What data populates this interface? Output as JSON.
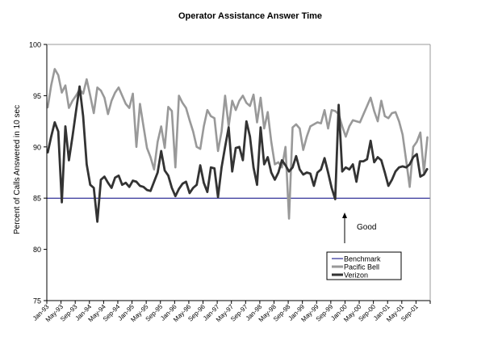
{
  "chart_data": {
    "type": "line",
    "title": "Operator Assistance Answer Time",
    "xlabel": "",
    "ylabel": "Percent of Calls Answered in 10 sec",
    "ylim": [
      75,
      100
    ],
    "yticks": [
      75,
      80,
      85,
      90,
      95,
      100
    ],
    "x_start": "Jan-93",
    "x_months": 108,
    "x_tick_labels": [
      "Jan-93",
      "May-93",
      "Sep-93",
      "Jan-94",
      "May-94",
      "Sep-94",
      "Jan-95",
      "May-95",
      "Sep-95",
      "Jan-96",
      "May-96",
      "Sep-96",
      "Jan-97",
      "May-97",
      "Sep-97",
      "Jan-98",
      "May-98",
      "Sep-98",
      "Jan-99",
      "May-99",
      "Sep-99",
      "Jan-00",
      "May-00",
      "Sep-00",
      "Jan-01",
      "May-01",
      "Sep-01"
    ],
    "grid": false,
    "legend_position": "bottom-right",
    "annotation": {
      "text": "Good",
      "arrow": "up"
    },
    "series": [
      {
        "name": "Benchmark",
        "color": "#000080",
        "constant": 85
      },
      {
        "name": "Pacific Bell",
        "color": "#999999",
        "values": [
          93.8,
          96,
          97.6,
          97,
          95.3,
          96,
          93.8,
          94.5,
          95,
          95.6,
          95.2,
          96.6,
          95,
          93.3,
          95.8,
          95.5,
          94.8,
          93.2,
          94.5,
          95.3,
          95.8,
          95,
          94.2,
          93.8,
          95.2,
          90,
          94.2,
          92,
          89.9,
          89,
          87.8,
          90.5,
          92,
          89.9,
          93.9,
          93.5,
          88,
          95,
          94.3,
          93.8,
          92.6,
          91.5,
          90,
          89.8,
          92,
          93.6,
          93,
          92.8,
          89.6,
          91.5,
          95,
          92,
          94.5,
          93.6,
          94.5,
          95,
          94.3,
          94,
          95.1,
          92.4,
          94.8,
          91.8,
          93.4,
          90.5,
          88.3,
          88.5,
          88,
          90,
          83,
          91.9,
          92.2,
          91.8,
          89.7,
          91,
          92,
          92.2,
          92.4,
          92.3,
          93.6,
          91.8,
          93.6,
          93.5,
          93.2,
          92,
          91,
          92,
          92.6,
          92.5,
          92.4,
          93.2,
          94,
          94.8,
          93.5,
          92.5,
          94.5,
          93,
          92.8,
          93.3,
          93.4,
          92.5,
          91.2,
          88.7,
          86.1,
          90,
          90.5,
          91.4,
          87.5,
          91
        ]
      },
      {
        "name": "Verizon",
        "color": "#333333",
        "values": [
          89.4,
          91,
          92.4,
          91.5,
          84.6,
          92,
          88.7,
          91,
          93.5,
          95.9,
          93,
          88.3,
          86.3,
          86,
          82.7,
          86.8,
          87.1,
          86.5,
          86,
          87,
          87.2,
          86.3,
          86.5,
          86.1,
          86.7,
          86.6,
          86.2,
          86.1,
          85.8,
          85.7,
          86.6,
          87.5,
          89.6,
          87.7,
          87.2,
          86,
          85.2,
          85.9,
          86.4,
          86.6,
          85.5,
          86,
          86.3,
          88.2,
          86.5,
          85.6,
          88,
          87.9,
          85.1,
          88,
          90,
          91.9,
          87.6,
          89.9,
          90,
          88.7,
          92.5,
          91,
          88,
          86.3,
          91.9,
          88.3,
          89,
          87.5,
          86.8,
          87.5,
          88.7,
          88.2,
          87.6,
          88,
          89.1,
          87.8,
          87.3,
          87.5,
          87.4,
          86.2,
          87.5,
          87.8,
          88.9,
          87.5,
          86,
          84.9,
          94.1,
          87.6,
          88,
          87.8,
          88.3,
          86.6,
          88.6,
          88.6,
          88.8,
          90.6,
          88.5,
          89,
          88.7,
          87.5,
          86.2,
          86.8,
          87.6,
          88,
          88.1,
          88,
          88.3,
          89,
          89.3,
          87.1,
          87.3,
          87.9
        ]
      }
    ]
  }
}
